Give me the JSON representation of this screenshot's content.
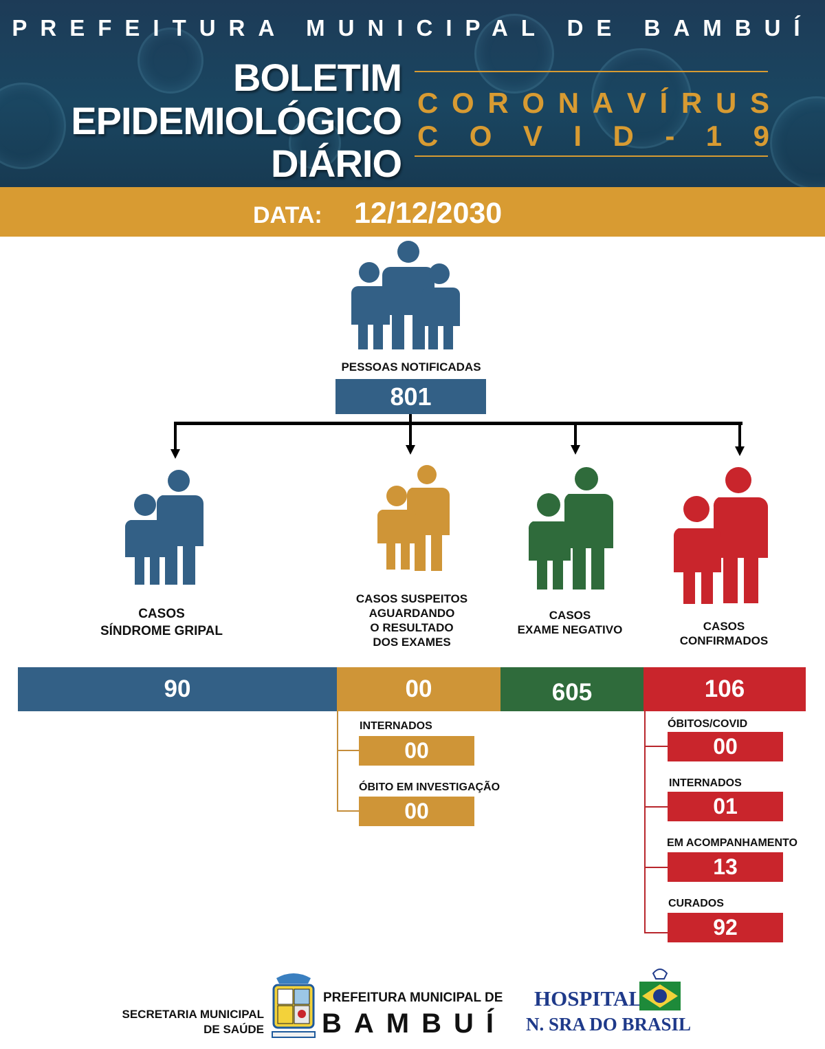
{
  "header": {
    "top_title": "PREFEITURA MUNICIPAL DE BAMBUÍ",
    "bulletin_lines": [
      "BOLETIM",
      "EPIDEMIOLÓGICO",
      "DIÁRIO"
    ],
    "corona_line1": "CORONAVÍRUS",
    "corona_line2": "COVID-19"
  },
  "date": {
    "label": "DATA:",
    "value": "12/12/2030"
  },
  "notified": {
    "label": "PESSOAS NOTIFICADAS",
    "value": "801"
  },
  "categories": [
    {
      "lines": [
        "CASOS",
        "SÍNDROME GRIPAL"
      ],
      "value": "90"
    },
    {
      "lines": [
        "CASOS SUSPEITOS",
        "AGUARDANDO",
        "O RESULTADO",
        "DOS EXAMES"
      ],
      "value": "00"
    },
    {
      "lines": [
        "CASOS",
        "EXAME NEGATIVO"
      ],
      "value": "605"
    },
    {
      "lines": [
        "CASOS",
        "CONFIRMADOS"
      ],
      "value": "106"
    }
  ],
  "suspect_details": [
    {
      "label": "INTERNADOS",
      "value": "00"
    },
    {
      "label": "ÓBITO EM INVESTIGAÇÃO",
      "value": "00"
    }
  ],
  "confirmed_details": [
    {
      "label": "ÓBITOS/COVID",
      "value": "00"
    },
    {
      "label": "INTERNADOS",
      "value": "01"
    },
    {
      "label": "EM ACOMPANHAMENTO",
      "value": "13"
    },
    {
      "label": "CURADOS",
      "value": "92"
    }
  ],
  "footer": {
    "secretaria_lines": [
      "SECRETARIA MUNICIPAL",
      "DE SAÚDE"
    ],
    "prefeitura_line1": "PREFEITURA MUNICIPAL DE",
    "prefeitura_line2": "BAMBUÍ",
    "hospital_line1": "HOSPITAL",
    "hospital_line2": "N. SRA DO BRASIL"
  },
  "colors": {
    "navy": "#1d3b57",
    "gold": "#cf9537",
    "blue": "#336086",
    "green": "#2f6b3b",
    "red": "#c9252c"
  }
}
